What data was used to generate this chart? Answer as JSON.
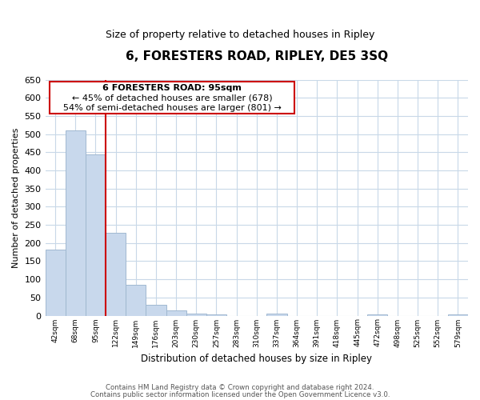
{
  "title": "6, FORESTERS ROAD, RIPLEY, DE5 3SQ",
  "subtitle": "Size of property relative to detached houses in Ripley",
  "xlabel": "Distribution of detached houses by size in Ripley",
  "ylabel": "Number of detached properties",
  "bar_labels": [
    "42sqm",
    "68sqm",
    "95sqm",
    "122sqm",
    "149sqm",
    "176sqm",
    "203sqm",
    "230sqm",
    "257sqm",
    "283sqm",
    "310sqm",
    "337sqm",
    "364sqm",
    "391sqm",
    "418sqm",
    "445sqm",
    "472sqm",
    "498sqm",
    "525sqm",
    "552sqm",
    "579sqm"
  ],
  "bar_values": [
    182,
    510,
    443,
    228,
    85,
    29,
    14,
    5,
    3,
    0,
    0,
    6,
    0,
    0,
    0,
    0,
    3,
    0,
    0,
    0,
    4
  ],
  "bar_color": "#c8d8ec",
  "bar_edge_color": "#a0b8d0",
  "vline_color": "#cc0000",
  "vline_x": 2.5,
  "ylim": [
    0,
    650
  ],
  "yticks": [
    0,
    50,
    100,
    150,
    200,
    250,
    300,
    350,
    400,
    450,
    500,
    550,
    600,
    650
  ],
  "annotation_title": "6 FORESTERS ROAD: 95sqm",
  "annotation_line1": "← 45% of detached houses are smaller (678)",
  "annotation_line2": "54% of semi-detached houses are larger (801) →",
  "annotation_box_color": "#ffffff",
  "annotation_box_edge": "#cc0000",
  "footer_line1": "Contains HM Land Registry data © Crown copyright and database right 2024.",
  "footer_line2": "Contains public sector information licensed under the Open Government Licence v3.0.",
  "bg_color": "#ffffff",
  "grid_color": "#c8d8e8"
}
